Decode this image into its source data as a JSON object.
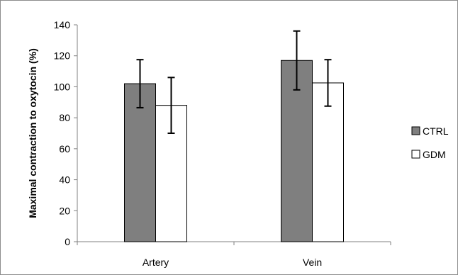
{
  "chart_data": {
    "type": "bar",
    "title": "",
    "xlabel": "",
    "ylabel": "Maximal contraction to oxytocin (%)",
    "categories": [
      "Artery",
      "Vein"
    ],
    "ylim": [
      0,
      140
    ],
    "yticks": [
      0,
      20,
      40,
      60,
      80,
      100,
      120,
      140
    ],
    "grid": false,
    "legend_position": "right",
    "series": [
      {
        "name": "CTRL",
        "values": [
          102,
          117
        ],
        "errors": [
          15.5,
          19
        ],
        "color": "#7f7f7f"
      },
      {
        "name": "GDM",
        "values": [
          88,
          102.5
        ],
        "errors": [
          18,
          15
        ],
        "color": "#ffffff"
      }
    ]
  }
}
